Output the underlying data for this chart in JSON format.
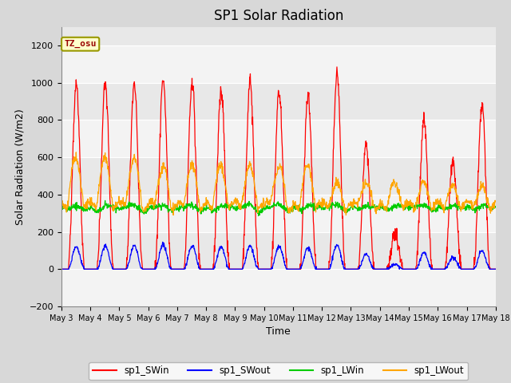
{
  "title": "SP1 Solar Radiation",
  "xlabel": "Time",
  "ylabel": "Solar Radiation (W/m2)",
  "ylim": [
    -200,
    1300
  ],
  "yticks": [
    -200,
    0,
    200,
    400,
    600,
    800,
    1000,
    1200
  ],
  "xlim_days": [
    3,
    18
  ],
  "xtick_labels": [
    "May 3",
    "May 4",
    "May 5",
    "May 6",
    "May 7",
    "May 8",
    "May 9",
    "May 10",
    "May 11",
    "May 12",
    "May 13",
    "May 14",
    "May 15",
    "May 16",
    "May 17",
    "May 18"
  ],
  "colors": {
    "SWin": "#ff0000",
    "SWout": "#0000ff",
    "LWin": "#00cc00",
    "LWout": "#ffa500"
  },
  "legend_labels": [
    "sp1_SWin",
    "sp1_SWout",
    "sp1_LWin",
    "sp1_LWout"
  ],
  "annotation_text": "TZ_osu",
  "annotation_color": "#990000",
  "annotation_bg": "#ffffcc",
  "annotation_border": "#999900",
  "fig_facecolor": "#d8d8d8",
  "plot_bg": "#e8e8e8",
  "grid_color": "#ffffff",
  "title_fontsize": 12,
  "axis_fontsize": 9,
  "tick_fontsize": 8,
  "num_days": 15,
  "seed": 12345
}
